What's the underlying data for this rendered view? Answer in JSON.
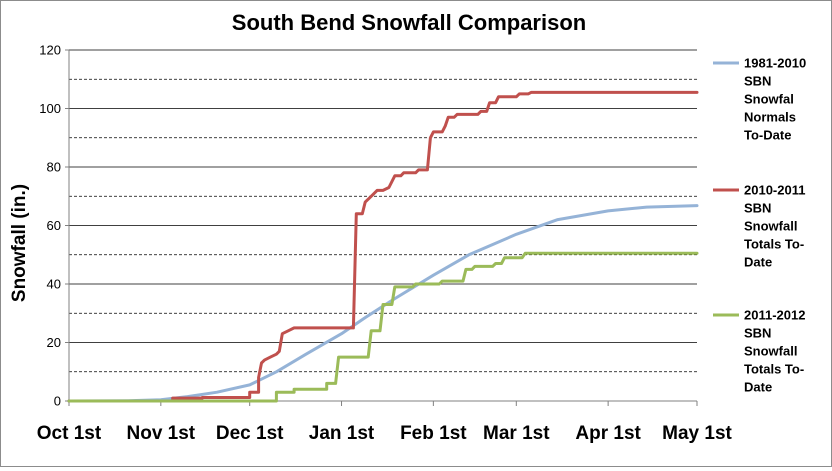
{
  "chart_data": {
    "type": "line",
    "title": "South Bend Snowfall Comparison",
    "xlabel": "",
    "ylabel": "Snowfall (in.)",
    "ylim": [
      0,
      120
    ],
    "yticks": [
      0,
      20,
      40,
      60,
      80,
      100,
      120
    ],
    "xlim": [
      0,
      212
    ],
    "xtick_labels": [
      {
        "label": "Oct 1st",
        "x": 0
      },
      {
        "label": "Nov 1st",
        "x": 31
      },
      {
        "label": "Dec 1st",
        "x": 61
      },
      {
        "label": "Jan 1st",
        "x": 92
      },
      {
        "label": "Feb 1st",
        "x": 123
      },
      {
        "label": "Mar 1st",
        "x": 151
      },
      {
        "label": "Apr 1st",
        "x": 182
      },
      {
        "label": "May 1st",
        "x": 212
      }
    ],
    "grid": {
      "major": [
        20,
        40,
        60,
        80,
        100,
        120
      ],
      "minor_dashed": [
        10,
        30,
        50,
        70,
        90,
        110
      ]
    },
    "legend_position": "right",
    "series": [
      {
        "name": "1981-2010 SBN Snowfal Normals To-Date",
        "legend_lines": [
          "1981-2010",
          "SBN",
          "Snowfal",
          "Normals",
          "To-Date"
        ],
        "color": "#95b3d7",
        "step": false,
        "points": [
          [
            0,
            0
          ],
          [
            20,
            0.1
          ],
          [
            31,
            0.4
          ],
          [
            40,
            1.5
          ],
          [
            50,
            3
          ],
          [
            61,
            5.5
          ],
          [
            70,
            10
          ],
          [
            80,
            16
          ],
          [
            92,
            23
          ],
          [
            100,
            28.5
          ],
          [
            110,
            35
          ],
          [
            123,
            43
          ],
          [
            135,
            50
          ],
          [
            151,
            57
          ],
          [
            165,
            62
          ],
          [
            182,
            65
          ],
          [
            195,
            66.3
          ],
          [
            212,
            66.8
          ]
        ]
      },
      {
        "name": "2010-2011 SBN Snowfall Totals To-Date",
        "legend_lines": [
          "2010-2011",
          "SBN",
          "Snowfall",
          "Totals To-",
          "Date"
        ],
        "color": "#c0504d",
        "step": true,
        "points": [
          [
            0,
            0
          ],
          [
            35,
            0
          ],
          [
            35,
            1
          ],
          [
            45,
            1
          ],
          [
            45,
            1.2
          ],
          [
            61,
            1.2
          ],
          [
            61,
            3
          ],
          [
            64,
            3
          ],
          [
            64,
            8
          ],
          [
            65,
            13
          ],
          [
            66,
            14
          ],
          [
            68,
            15
          ],
          [
            70,
            16
          ],
          [
            71,
            17
          ],
          [
            72,
            23
          ],
          [
            74,
            24
          ],
          [
            76,
            25
          ],
          [
            90,
            25
          ],
          [
            96,
            25
          ],
          [
            97,
            64
          ],
          [
            99,
            64
          ],
          [
            100,
            68
          ],
          [
            102,
            70
          ],
          [
            104,
            72
          ],
          [
            106,
            72
          ],
          [
            108,
            73
          ],
          [
            110,
            77
          ],
          [
            112,
            77
          ],
          [
            113,
            78
          ],
          [
            117,
            78
          ],
          [
            118,
            79
          ],
          [
            121,
            79
          ],
          [
            122,
            90
          ],
          [
            123,
            92
          ],
          [
            126,
            92
          ],
          [
            127,
            94
          ],
          [
            128,
            97
          ],
          [
            130,
            97
          ],
          [
            131,
            98
          ],
          [
            138,
            98
          ],
          [
            139,
            99
          ],
          [
            141,
            99
          ],
          [
            142,
            102
          ],
          [
            144,
            102
          ],
          [
            145,
            104
          ],
          [
            151,
            104
          ],
          [
            152,
            105
          ],
          [
            155,
            105
          ],
          [
            156,
            105.5
          ],
          [
            212,
            105.5
          ]
        ]
      },
      {
        "name": "2011-2012 SBN Snowfall Totals To-Date",
        "legend_lines": [
          "2011-2012",
          "SBN",
          "Snowfall",
          "Totals To-",
          "Date"
        ],
        "color": "#9bbb59",
        "step": true,
        "points": [
          [
            0,
            0
          ],
          [
            70,
            0
          ],
          [
            70,
            3
          ],
          [
            76,
            3
          ],
          [
            76,
            4
          ],
          [
            87,
            4
          ],
          [
            87,
            6
          ],
          [
            90,
            6
          ],
          [
            91,
            15
          ],
          [
            101,
            15
          ],
          [
            102,
            24
          ],
          [
            105,
            24
          ],
          [
            106,
            33
          ],
          [
            109,
            33
          ],
          [
            110,
            39
          ],
          [
            116,
            39
          ],
          [
            117,
            40
          ],
          [
            125,
            40
          ],
          [
            126,
            41
          ],
          [
            133,
            41
          ],
          [
            134,
            45
          ],
          [
            136,
            45
          ],
          [
            137,
            46
          ],
          [
            143,
            46
          ],
          [
            144,
            47
          ],
          [
            146,
            47
          ],
          [
            147,
            49
          ],
          [
            153,
            49
          ],
          [
            154,
            50.5
          ],
          [
            212,
            50.5
          ]
        ]
      }
    ]
  }
}
